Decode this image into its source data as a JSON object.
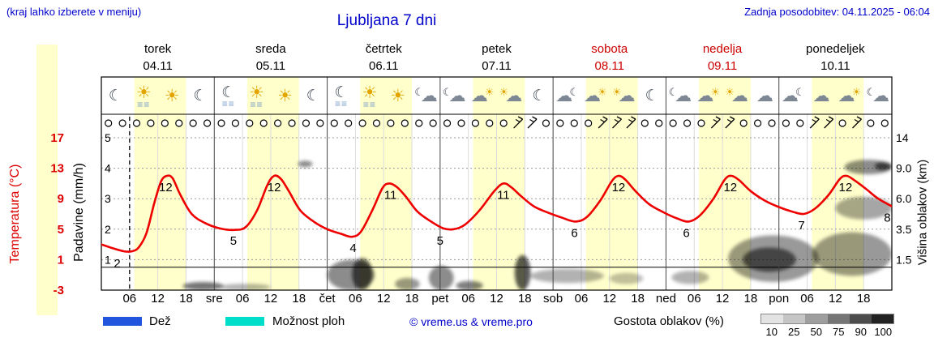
{
  "header": {
    "hint": "(kraj lahko izberete v meniju)",
    "title": "Ljubljana 7 dni",
    "updated": "Zadnja posodobitev: 04.11.2025 - 06:04"
  },
  "days": [
    {
      "name": "torek",
      "date": "04.11",
      "weekend": false
    },
    {
      "name": "sreda",
      "date": "05.11",
      "weekend": false
    },
    {
      "name": "četrtek",
      "date": "06.11",
      "weekend": false
    },
    {
      "name": "petek",
      "date": "07.11",
      "weekend": false
    },
    {
      "name": "sobota",
      "date": "08.11",
      "weekend": true
    },
    {
      "name": "nedelja",
      "date": "09.11",
      "weekend": true
    },
    {
      "name": "ponedeljek",
      "date": "10.11",
      "weekend": false
    }
  ],
  "axes": {
    "temp_label": "Temperatura (°C)",
    "temp_ticks": [
      "17",
      "13",
      "9",
      "5",
      "1",
      "-3"
    ],
    "precip_label": "Padavine (mm/h)",
    "precip_ticks": [
      "5",
      "4",
      "3",
      "2",
      "1"
    ],
    "cloud_label": "Višina oblakov (km)",
    "cloud_ticks": [
      "14",
      "9.0",
      "6.0",
      "3.5",
      "1.5"
    ],
    "hour_ticks": [
      "06",
      "12",
      "18"
    ],
    "day_abbrevs": [
      "sre",
      "čet",
      "pet",
      "sob",
      "ned",
      "pon"
    ]
  },
  "icons": [
    "moon",
    "fog-sun",
    "sun",
    "moon",
    "moon-fog",
    "fog-sun",
    "sun",
    "moon",
    "moon-fog",
    "fog-sun",
    "sun",
    "moon-cloud",
    "moon-cloud",
    "cloud-sun",
    "sun-cloud",
    "moon",
    "cloud-moon",
    "cloud-sun",
    "sun-cloud",
    "moon",
    "moon-cloud",
    "cloud-sun",
    "sun-cloud",
    "cloud",
    "cloud-moon",
    "cloud",
    "cloud-sun",
    "moon-cloud"
  ],
  "legend": {
    "rain": "Dež",
    "showers": "Možnost ploh",
    "copyright": "© vreme.us & vreme.pro",
    "clouds_label": "Gostota oblakov (%)",
    "scale_values": [
      "10",
      "25",
      "50",
      "75",
      "90",
      "100"
    ],
    "scale_colors": [
      "#e3e3e3",
      "#c5c5c5",
      "#9e9e9e",
      "#757575",
      "#4c4c4c",
      "#222222"
    ],
    "rain_color": "#2255dd",
    "showers_color": "#00ddc8"
  },
  "chart_data": {
    "type": "meteogram",
    "location": "Ljubljana",
    "span_days": 7,
    "daylight_hours": {
      "start": 7,
      "end": 18
    },
    "daylight_color": "#ffffcc",
    "now_t_days": 0.25,
    "freezing_line_temp_c": 0,
    "temp_axis_range_c": [
      -3,
      17
    ],
    "precip_axis_range_mmh": [
      0,
      5
    ],
    "cloud_height_axis_km": [
      0,
      1.5,
      3.5,
      6,
      9,
      14
    ],
    "temperature_c": {
      "color": "#ee0000",
      "points": [
        [
          0,
          3
        ],
        [
          0.1,
          2.5
        ],
        [
          0.2,
          2.1
        ],
        [
          0.27,
          2.1
        ],
        [
          0.33,
          2.6
        ],
        [
          0.4,
          4.5
        ],
        [
          0.47,
          8.5
        ],
        [
          0.53,
          11.3
        ],
        [
          0.58,
          12
        ],
        [
          0.63,
          11.7
        ],
        [
          0.7,
          9.5
        ],
        [
          0.8,
          7
        ],
        [
          0.92,
          5.8
        ],
        [
          1.05,
          5.1
        ],
        [
          1.18,
          4.9
        ],
        [
          1.28,
          5.3
        ],
        [
          1.38,
          7.5
        ],
        [
          1.47,
          10.8
        ],
        [
          1.53,
          12
        ],
        [
          1.59,
          11.6
        ],
        [
          1.66,
          10
        ],
        [
          1.76,
          7.5
        ],
        [
          1.88,
          6
        ],
        [
          2.0,
          5
        ],
        [
          2.12,
          4.4
        ],
        [
          2.22,
          4
        ],
        [
          2.3,
          4.7
        ],
        [
          2.4,
          7.5
        ],
        [
          2.49,
          10.4
        ],
        [
          2.55,
          11
        ],
        [
          2.62,
          10.5
        ],
        [
          2.7,
          9.2
        ],
        [
          2.8,
          7.3
        ],
        [
          2.92,
          6
        ],
        [
          3.03,
          5.1
        ],
        [
          3.12,
          5
        ],
        [
          3.22,
          5.6
        ],
        [
          3.35,
          7.5
        ],
        [
          3.48,
          10
        ],
        [
          3.56,
          11
        ],
        [
          3.63,
          10.5
        ],
        [
          3.72,
          9.3
        ],
        [
          3.83,
          8
        ],
        [
          3.95,
          7.2
        ],
        [
          4.08,
          6.5
        ],
        [
          4.2,
          6
        ],
        [
          4.3,
          6.6
        ],
        [
          4.42,
          8.8
        ],
        [
          4.52,
          11.3
        ],
        [
          4.58,
          12
        ],
        [
          4.64,
          11.5
        ],
        [
          4.73,
          10
        ],
        [
          4.85,
          8.3
        ],
        [
          4.98,
          7.2
        ],
        [
          5.1,
          6.4
        ],
        [
          5.2,
          6
        ],
        [
          5.3,
          6.8
        ],
        [
          5.42,
          9
        ],
        [
          5.52,
          11.5
        ],
        [
          5.58,
          12
        ],
        [
          5.65,
          11.4
        ],
        [
          5.75,
          10
        ],
        [
          5.87,
          8.8
        ],
        [
          6.0,
          7.9
        ],
        [
          6.12,
          7.3
        ],
        [
          6.22,
          7
        ],
        [
          6.32,
          7.7
        ],
        [
          6.44,
          9.5
        ],
        [
          6.54,
          11.6
        ],
        [
          6.6,
          12
        ],
        [
          6.67,
          11.4
        ],
        [
          6.77,
          10.3
        ],
        [
          6.88,
          9
        ],
        [
          7.0,
          8
        ]
      ]
    },
    "temp_point_labels": [
      {
        "t": 0.14,
        "v": 2,
        "label": "2"
      },
      {
        "t": 0.57,
        "v": 12,
        "label": "12"
      },
      {
        "t": 1.17,
        "v": 5,
        "label": "5"
      },
      {
        "t": 1.53,
        "v": 12,
        "label": "12"
      },
      {
        "t": 2.23,
        "v": 4,
        "label": "4"
      },
      {
        "t": 2.56,
        "v": 11,
        "label": "11"
      },
      {
        "t": 3.0,
        "v": 5,
        "label": "5"
      },
      {
        "t": 3.56,
        "v": 11,
        "label": "11"
      },
      {
        "t": 4.19,
        "v": 6,
        "label": "6"
      },
      {
        "t": 4.58,
        "v": 12,
        "label": "12"
      },
      {
        "t": 5.18,
        "v": 6,
        "label": "6"
      },
      {
        "t": 5.57,
        "v": 12,
        "label": "12"
      },
      {
        "t": 6.2,
        "v": 7,
        "label": "7"
      },
      {
        "t": 6.59,
        "v": 12,
        "label": "12"
      },
      {
        "t": 6.96,
        "v": 8,
        "label": "8"
      }
    ],
    "clouds": [
      [
        0.72,
        1.08,
        0,
        0.4,
        0.55
      ],
      [
        1.05,
        1.5,
        0,
        0.3,
        0.3
      ],
      [
        1.74,
        1.87,
        9.2,
        10.2,
        0.45
      ],
      [
        2.0,
        2.42,
        0,
        1.5,
        0.45
      ],
      [
        2.22,
        2.4,
        0,
        1.6,
        0.6
      ],
      [
        2.6,
        2.82,
        0,
        0.6,
        0.4
      ],
      [
        2.9,
        3.12,
        0,
        1.2,
        0.45
      ],
      [
        3.14,
        3.38,
        0,
        0.45,
        0.5
      ],
      [
        3.66,
        3.8,
        0,
        1.8,
        0.65
      ],
      [
        3.8,
        4.45,
        0.35,
        1.05,
        0.3
      ],
      [
        4.5,
        4.8,
        0.3,
        0.85,
        0.25
      ],
      [
        5.05,
        5.38,
        0.3,
        0.95,
        0.3
      ],
      [
        5.55,
        6.35,
        0.4,
        3.1,
        0.4
      ],
      [
        5.68,
        6.15,
        0.9,
        2.3,
        0.55
      ],
      [
        6.3,
        7.0,
        0.7,
        3.3,
        0.4
      ],
      [
        6.5,
        7.0,
        4.3,
        6.2,
        0.35
      ],
      [
        6.58,
        7.0,
        8.4,
        10.4,
        0.45
      ],
      [
        6.85,
        7.0,
        8.8,
        10.0,
        0.6
      ]
    ],
    "wind": {
      "count": 56,
      "barb_indices": [
        29,
        30,
        35,
        36,
        37,
        43,
        44,
        50,
        51,
        53
      ]
    }
  }
}
